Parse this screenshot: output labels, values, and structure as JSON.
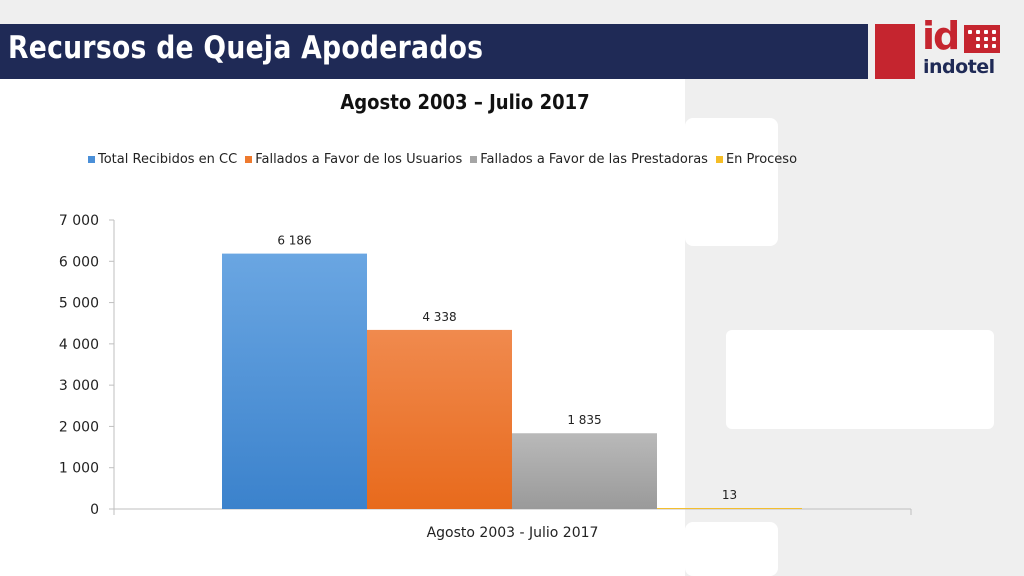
{
  "header": {
    "title": "Recursos de Queja Apoderados"
  },
  "logo": {
    "mark": "id",
    "word": "indotel"
  },
  "colors": {
    "title_bar": "#1f2a56",
    "logo_red": "#c5252f",
    "panel_gray": "#efefef"
  },
  "chart_data": {
    "type": "bar",
    "title": "Agosto 2003 – Julio 2017",
    "categories": [
      "Agosto 2003 - Julio 2017"
    ],
    "series": [
      {
        "name": "Total Recibidos en CC",
        "values": [
          6186
        ],
        "labels": [
          "6 186"
        ],
        "color": "#4a8fd8"
      },
      {
        "name": "Fallados a Favor de los Usuarios",
        "values": [
          4338
        ],
        "labels": [
          "4 338"
        ],
        "color": "#ee7a2e"
      },
      {
        "name": "Fallados a Favor de las Prestadoras",
        "values": [
          1835
        ],
        "labels": [
          "1 835"
        ],
        "color": "#a5a5a5"
      },
      {
        "name": "En Proceso",
        "values": [
          13
        ],
        "labels": [
          "13"
        ],
        "color": "#f5bd26"
      }
    ],
    "y_ticks": [
      0,
      1000,
      2000,
      3000,
      4000,
      5000,
      6000,
      7000
    ],
    "y_tick_labels": [
      "0",
      "1 000",
      "2 000",
      "3 000",
      "4 000",
      "5 000",
      "6 000",
      "7 000"
    ],
    "ylim": [
      0,
      7000
    ],
    "grid": false,
    "legend_position": "top"
  }
}
